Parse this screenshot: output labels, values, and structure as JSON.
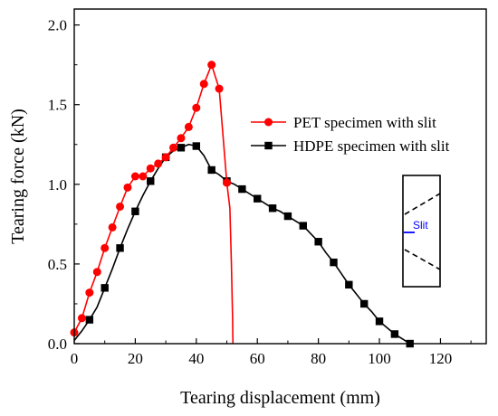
{
  "chart_data": {
    "type": "line",
    "title": "",
    "xlabel": "Tearing displacement (mm)",
    "ylabel": "Tearing force (kN)",
    "xlim": [
      0,
      135
    ],
    "ylim": [
      0,
      2.1
    ],
    "x_ticks": [
      "0",
      "20",
      "40",
      "60",
      "80",
      "100",
      "120"
    ],
    "y_ticks": [
      "0.0",
      "0.5",
      "1.0",
      "1.5",
      "2.0"
    ],
    "grid": false,
    "legend_position": "right",
    "series": [
      {
        "name": "PET specimen with slit",
        "color": "#ff0000",
        "marker": "circle",
        "x": [
          0,
          2.5,
          5,
          7.5,
          10,
          12.5,
          15,
          17.5,
          20,
          22.5,
          25,
          27.5,
          30,
          32.5,
          35,
          37.5,
          40,
          42.5,
          45,
          47.5,
          50,
          51,
          51.5,
          51.9,
          52
        ],
        "y": [
          0.07,
          0.16,
          0.32,
          0.45,
          0.6,
          0.73,
          0.86,
          0.98,
          1.05,
          1.05,
          1.1,
          1.13,
          1.17,
          1.23,
          1.29,
          1.36,
          1.48,
          1.63,
          1.75,
          1.6,
          1.01,
          0.85,
          0.5,
          0.15,
          0.0
        ],
        "marker_indices": [
          0,
          1,
          2,
          3,
          4,
          5,
          6,
          7,
          8,
          9,
          10,
          11,
          12,
          13,
          14,
          15,
          16,
          17,
          18,
          19,
          20
        ]
      },
      {
        "name": "HDPE specimen with slit",
        "color": "#000000",
        "marker": "square",
        "x": [
          0,
          2.5,
          5,
          7.5,
          10,
          12.5,
          15,
          17.5,
          20,
          22.5,
          25,
          27.5,
          30,
          32.5,
          35,
          37.5,
          40,
          42.5,
          45,
          47.5,
          50,
          52.5,
          55,
          57.5,
          60,
          62.5,
          65,
          67.5,
          70,
          72.5,
          75,
          77.5,
          80,
          82.5,
          85,
          87.5,
          90,
          92.5,
          95,
          97.5,
          100,
          102.5,
          105,
          107.5,
          110
        ],
        "y": [
          0.02,
          0.08,
          0.15,
          0.23,
          0.35,
          0.47,
          0.6,
          0.72,
          0.83,
          0.93,
          1.02,
          1.1,
          1.17,
          1.21,
          1.23,
          1.25,
          1.24,
          1.18,
          1.09,
          1.06,
          1.02,
          1.0,
          0.97,
          0.94,
          0.91,
          0.88,
          0.85,
          0.83,
          0.8,
          0.77,
          0.74,
          0.69,
          0.64,
          0.57,
          0.51,
          0.44,
          0.37,
          0.31,
          0.25,
          0.2,
          0.14,
          0.1,
          0.06,
          0.03,
          0.0
        ],
        "marker_indices": [
          2,
          4,
          6,
          8,
          10,
          12,
          14,
          16,
          18,
          20,
          22,
          24,
          26,
          28,
          30,
          32,
          34,
          36,
          38,
          40,
          42,
          44,
          46,
          48,
          50,
          52,
          54,
          56,
          58,
          60,
          62,
          64,
          66,
          68,
          70,
          72,
          74,
          76,
          78,
          80,
          82,
          84,
          86,
          88,
          90,
          92,
          94,
          96,
          98,
          100,
          102,
          104,
          106,
          108,
          110
        ]
      }
    ],
    "inset": {
      "label": "Slit",
      "label_color": "#0000ff"
    }
  }
}
